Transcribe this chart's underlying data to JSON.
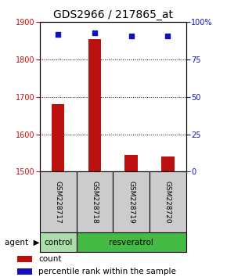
{
  "title": "GDS2966 / 217865_at",
  "samples": [
    "GSM228717",
    "GSM228718",
    "GSM228719",
    "GSM228720"
  ],
  "counts": [
    1680,
    1855,
    1545,
    1540
  ],
  "percentile_ranks": [
    92,
    93,
    91,
    91
  ],
  "ylim_left": [
    1500,
    1900
  ],
  "ylim_right": [
    0,
    100
  ],
  "yticks_left": [
    1500,
    1600,
    1700,
    1800,
    1900
  ],
  "yticks_right": [
    0,
    25,
    50,
    75,
    100
  ],
  "bar_color": "#bb1111",
  "dot_color": "#1111bb",
  "bar_width": 0.35,
  "groups": [
    {
      "label": "control",
      "n_samples": 1,
      "color": "#aaddaa"
    },
    {
      "label": "resveratrol",
      "n_samples": 3,
      "color": "#44bb44"
    }
  ],
  "agent_label": "agent",
  "legend_count_label": "count",
  "legend_pct_label": "percentile rank within the sample",
  "title_fontsize": 10,
  "axis_tick_fontsize": 7,
  "sample_label_fontsize": 6.5,
  "group_label_fontsize": 7.5,
  "legend_fontsize": 7.5,
  "axis_label_color_left": "#bb1111",
  "axis_label_color_right": "#1111bb",
  "sample_box_color": "#cccccc",
  "plot_bg": "#ffffff"
}
